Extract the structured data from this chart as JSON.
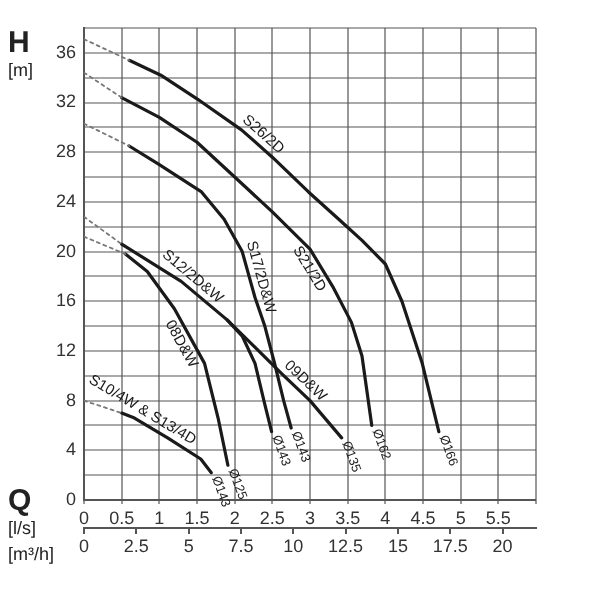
{
  "chart_data": {
    "type": "line",
    "xlabel": "Q [l/s]",
    "ylabel": "H [m]",
    "x2label": "[m³/h]",
    "xlim": [
      0,
      6
    ],
    "xticks": [
      0,
      0.5,
      1,
      1.5,
      2,
      2.5,
      3,
      3.5,
      4,
      4.5,
      5,
      5.5,
      {
        "value": 6,
        "label": null
      }
    ],
    "x2lim": [
      0,
      21.6
    ],
    "x2ticks": [
      0,
      2.5,
      5,
      7.5,
      10,
      12.5,
      15,
      17.5,
      20
    ],
    "ylim": [
      0,
      38
    ],
    "yticks": [
      0,
      {
        "value": 2,
        "label": null
      },
      4,
      {
        "value": 6,
        "label": null
      },
      8,
      {
        "value": 10,
        "label": null
      },
      12,
      {
        "value": 14,
        "label": null
      },
      16,
      {
        "value": 18,
        "label": null
      },
      20,
      {
        "value": 22,
        "label": null
      },
      24,
      {
        "value": 26,
        "label": null
      },
      28,
      {
        "value": 30,
        "label": null
      },
      32,
      {
        "value": 34,
        "label": null
      },
      36,
      {
        "value": 38,
        "label": null
      }
    ],
    "grid": true,
    "legend": false,
    "marker": "none",
    "series": [
      {
        "color": "#777777",
        "line_style": "dotted",
        "x": [
          0,
          0.6
        ],
        "values": [
          37.1,
          35.4
        ]
      },
      {
        "name": "S26/2D",
        "color": "#1a1a1a",
        "line_style": "solid",
        "x": [
          0.6,
          1.02,
          1.5,
          2.09,
          2.5,
          2.98,
          3.4,
          3.69,
          4.0,
          4.22,
          4.49,
          4.71
        ],
        "values": [
          35.4,
          34.2,
          32.3,
          29.8,
          27.6,
          24.8,
          22.5,
          20.9,
          19.0,
          16.0,
          11.0,
          5.5
        ]
      },
      {
        "color": "#777777",
        "line_style": "dotted",
        "x": [
          0,
          0.5
        ],
        "values": [
          34.4,
          32.4
        ]
      },
      {
        "name": "S21/2D",
        "color": "#1a1a1a",
        "line_style": "solid",
        "x": [
          0.5,
          1,
          1.5,
          2.09,
          2.5,
          3,
          3.3,
          3.55,
          3.69,
          3.82
        ],
        "values": [
          32.4,
          30.8,
          28.8,
          25.5,
          23.2,
          20.2,
          17.2,
          14.3,
          11.6,
          6.0
        ]
      },
      {
        "color": "#777777",
        "line_style": "dotted",
        "x": [
          0,
          0.6
        ],
        "values": [
          30.3,
          28.5
        ]
      },
      {
        "name": "S17/2D&W",
        "color": "#1a1a1a",
        "line_style": "solid",
        "x": [
          0.6,
          1.0,
          1.56,
          1.86,
          2.1,
          2.27,
          2.4,
          2.53,
          2.65,
          2.75
        ],
        "values": [
          28.5,
          27,
          24.8,
          22.6,
          20,
          16.3,
          14,
          11,
          8,
          5.8
        ]
      },
      {
        "color": "#777777",
        "line_style": "dotted",
        "x": [
          0,
          0.5
        ],
        "values": [
          22.8,
          20.6
        ]
      },
      {
        "name": "S12/2D&W",
        "color": "#1a1a1a",
        "line_style": "solid",
        "x": [
          0.5,
          1.29,
          1.9,
          2.1,
          2.27,
          2.4,
          2.49
        ],
        "values": [
          20.6,
          17.6,
          14.5,
          13.2,
          11,
          7.7,
          5.5
        ]
      },
      {
        "name": "09D&W",
        "color": "#1a1a1a",
        "line_style": "solid",
        "x": [
          1.9,
          2.62,
          3.0,
          3.42
        ],
        "values": [
          14.5,
          10.2,
          8.0,
          5.0
        ]
      },
      {
        "color": "#777777",
        "line_style": "dotted",
        "x": [
          0,
          0.55
        ],
        "values": [
          21.2,
          19.8
        ]
      },
      {
        "name": "08D&W",
        "color": "#1a1a1a",
        "line_style": "solid",
        "x": [
          0.55,
          0.84,
          1.2,
          1.6,
          1.78,
          1.91
        ],
        "values": [
          19.8,
          18.4,
          15.4,
          11.0,
          6.6,
          2.8
        ]
      },
      {
        "color": "#777777",
        "line_style": "dotted",
        "x": [
          0,
          0.5
        ],
        "values": [
          8.0,
          7.0
        ]
      },
      {
        "name": "S10/4W & S13/4D",
        "color": "#1a1a1a",
        "line_style": "solid",
        "x": [
          0.5,
          0.67,
          1.11,
          1.55,
          1.69
        ],
        "values": [
          7.0,
          6.6,
          5.0,
          3.3,
          2.2
        ]
      }
    ],
    "annotations": [
      {
        "text": "Ø166",
        "x": 4.71,
        "y": 5.5
      },
      {
        "text": "Ø162",
        "x": 3.82,
        "y": 6.0
      },
      {
        "text": "Ø135",
        "x": 3.42,
        "y": 5.0
      },
      {
        "text": "Ø143",
        "x": 2.75,
        "y": 5.8
      },
      {
        "text": "Ø143",
        "x": 2.49,
        "y": 5.5
      },
      {
        "text": "Ø125",
        "x": 1.91,
        "y": 2.8
      },
      {
        "text": "Ø143",
        "x": 1.69,
        "y": 2.2
      }
    ]
  }
}
